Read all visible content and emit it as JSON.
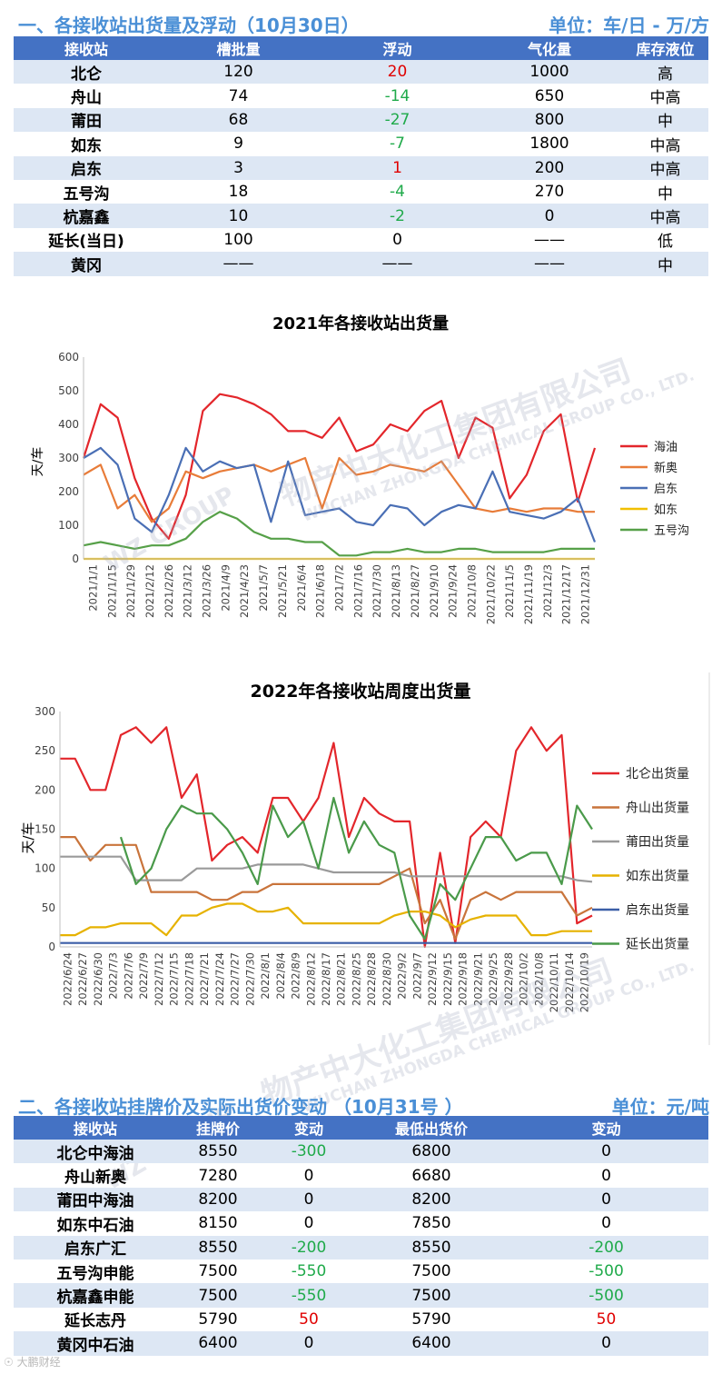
{
  "section1": {
    "title": "一、各接收站出货量及浮动（10月30日）",
    "unit": "单位：车/日 - 万/方",
    "headers": [
      "接收站",
      "槽批量",
      "浮动",
      "气化量",
      "库存液位"
    ],
    "rows": [
      {
        "name": "北仑",
        "batch": "120",
        "float": "20",
        "float_sign": "pos",
        "gas": "1000",
        "level": "高"
      },
      {
        "name": "舟山",
        "batch": "74",
        "float": "-14",
        "float_sign": "neg",
        "gas": "650",
        "level": "中高"
      },
      {
        "name": "莆田",
        "batch": "68",
        "float": "-27",
        "float_sign": "neg",
        "gas": "800",
        "level": "中"
      },
      {
        "name": "如东",
        "batch": "9",
        "float": "-7",
        "float_sign": "neg",
        "gas": "1800",
        "level": "中高"
      },
      {
        "name": "启东",
        "batch": "3",
        "float": "1",
        "float_sign": "pos",
        "gas": "200",
        "level": "中高"
      },
      {
        "name": "五号沟",
        "batch": "18",
        "float": "-4",
        "float_sign": "neg",
        "gas": "270",
        "level": "中"
      },
      {
        "name": "杭嘉鑫",
        "batch": "10",
        "float": "-2",
        "float_sign": "neg",
        "gas": "0",
        "level": "中高"
      },
      {
        "name": "延长(当日)",
        "batch": "100",
        "float": "0",
        "float_sign": "zero",
        "gas": "——",
        "level": "低"
      },
      {
        "name": "黄冈",
        "batch": "——",
        "float": "——",
        "float_sign": "zero",
        "gas": "——",
        "level": "中"
      }
    ]
  },
  "chart_data": [
    {
      "type": "line",
      "title": "2021年各接收站出货量",
      "ylabel": "天/车",
      "ylim": [
        0,
        600
      ],
      "yticks": [
        0,
        100,
        200,
        300,
        400,
        500,
        600
      ],
      "x_ticks": [
        "2021/1/1",
        "2021/1/15",
        "2021/1/29",
        "2021/2/12",
        "2021/2/26",
        "2021/3/12",
        "2021/3/26",
        "2021/4/9",
        "2021/4/23",
        "2021/5/7",
        "2021/5/21",
        "2021/6/4",
        "2021/6/18",
        "2021/7/2",
        "2021/7/16",
        "2021/7/30",
        "2021/8/13",
        "2021/8/27",
        "2021/9/10",
        "2021/9/24",
        "2021/10/8",
        "2021/10/22",
        "2021/11/5",
        "2021/11/19",
        "2021/12/3",
        "2021/12/17",
        "2021/12/31"
      ],
      "legend_position": "right",
      "series": [
        {
          "name": "海油",
          "color": "#e3262b",
          "values": [
            300,
            460,
            420,
            240,
            120,
            60,
            190,
            440,
            490,
            480,
            460,
            430,
            380,
            380,
            360,
            420,
            320,
            340,
            400,
            380,
            440,
            470,
            300,
            420,
            390,
            180,
            250,
            380,
            430,
            170,
            330
          ]
        },
        {
          "name": "新奥",
          "color": "#e87c39",
          "values": [
            250,
            280,
            150,
            190,
            110,
            150,
            260,
            240,
            260,
            270,
            280,
            260,
            280,
            300,
            150,
            300,
            250,
            260,
            280,
            270,
            260,
            290,
            220,
            150,
            140,
            150,
            140,
            150,
            150,
            140,
            140
          ]
        },
        {
          "name": "启东",
          "color": "#4a6fb5",
          "values": [
            300,
            330,
            280,
            120,
            80,
            190,
            330,
            260,
            290,
            270,
            280,
            110,
            290,
            130,
            140,
            150,
            110,
            100,
            160,
            150,
            100,
            140,
            160,
            150,
            260,
            140,
            130,
            120,
            140,
            180,
            50
          ]
        },
        {
          "name": "如东",
          "color": "#f1bf00",
          "values": [
            0,
            0,
            0,
            0,
            0,
            0,
            0,
            0,
            0,
            0,
            0,
            0,
            0,
            0,
            0,
            0,
            0,
            0,
            0,
            0,
            0,
            0,
            0,
            0,
            0,
            0,
            0,
            0,
            0,
            0,
            0
          ]
        },
        {
          "name": "五号沟",
          "color": "#56a048",
          "values": [
            40,
            50,
            40,
            30,
            40,
            40,
            60,
            110,
            140,
            120,
            80,
            60,
            60,
            50,
            50,
            10,
            10,
            20,
            20,
            30,
            20,
            20,
            30,
            30,
            20,
            20,
            20,
            20,
            30,
            30,
            30
          ]
        }
      ]
    },
    {
      "type": "line",
      "title": "2022年各接收站周度出货量",
      "ylabel": "天/车",
      "ylim": [
        0,
        300
      ],
      "yticks": [
        0,
        50,
        100,
        150,
        200,
        250,
        300
      ],
      "x_ticks": [
        "2022/6/24",
        "2022/6/27",
        "2022/6/30",
        "2022/7/3",
        "2022/7/6",
        "2022/7/9",
        "2022/7/12",
        "2022/7/15",
        "2022/7/18",
        "2022/7/21",
        "2022/7/24",
        "2022/7/27",
        "2022/7/30",
        "2022/8/1",
        "2022/8/4",
        "2022/8/9",
        "2022/8/12",
        "2022/8/17",
        "2022/8/21",
        "2022/8/25",
        "2022/8/28",
        "2022/8/30",
        "2022/9/2",
        "2022/9/7",
        "2022/9/12",
        "2022/9/15",
        "2022/9/18",
        "2022/9/21",
        "2022/9/25",
        "2022/9/28",
        "2022/10/2",
        "2022/10/8",
        "2022/10/11",
        "2022/10/14",
        "2022/10/19"
      ],
      "legend_position": "right",
      "series": [
        {
          "name": "北仑出货量",
          "color": "#e3262b",
          "values": [
            240,
            240,
            200,
            200,
            270,
            280,
            260,
            280,
            190,
            220,
            110,
            130,
            140,
            120,
            190,
            190,
            160,
            190,
            260,
            140,
            190,
            170,
            160,
            160,
            0,
            120,
            5,
            140,
            160,
            140,
            250,
            280,
            250,
            270,
            30,
            40
          ]
        },
        {
          "name": "舟山出货量",
          "color": "#c9743b",
          "values": [
            140,
            140,
            110,
            130,
            130,
            130,
            70,
            70,
            70,
            70,
            60,
            60,
            70,
            70,
            80,
            80,
            80,
            80,
            80,
            80,
            80,
            80,
            90,
            100,
            30,
            60,
            10,
            60,
            70,
            60,
            70,
            70,
            70,
            70,
            40,
            50
          ]
        },
        {
          "name": "莆田出货量",
          "color": "#9a9a9a",
          "values": [
            115,
            115,
            115,
            115,
            115,
            85,
            85,
            85,
            85,
            100,
            100,
            100,
            100,
            105,
            105,
            105,
            105,
            100,
            95,
            95,
            95,
            95,
            95,
            90,
            90,
            90,
            90,
            90,
            90,
            90,
            90,
            90,
            90,
            90,
            85,
            83
          ]
        },
        {
          "name": "如东出货量",
          "color": "#e6b200",
          "values": [
            15,
            15,
            25,
            25,
            30,
            30,
            30,
            15,
            40,
            40,
            50,
            55,
            55,
            45,
            45,
            50,
            30,
            30,
            30,
            30,
            30,
            30,
            40,
            45,
            45,
            40,
            25,
            35,
            40,
            40,
            40,
            15,
            15,
            20,
            20,
            20
          ]
        },
        {
          "name": "启东出货量",
          "color": "#3b5ea7",
          "values": [
            5,
            5,
            5,
            5,
            5,
            5,
            5,
            5,
            5,
            5,
            5,
            5,
            5,
            5,
            5,
            5,
            5,
            5,
            5,
            5,
            5,
            5,
            5,
            5,
            5,
            5,
            5,
            5,
            5,
            5,
            5,
            5,
            5,
            5,
            5,
            5
          ]
        },
        {
          "name": "延长出货量",
          "color": "#4a9a4a",
          "values": [
            null,
            null,
            null,
            null,
            140,
            80,
            100,
            150,
            180,
            170,
            170,
            150,
            120,
            80,
            180,
            140,
            160,
            100,
            190,
            120,
            160,
            130,
            120,
            40,
            10,
            80,
            60,
            100,
            140,
            140,
            110,
            120,
            120,
            80,
            180,
            150
          ]
        }
      ]
    }
  ],
  "watermark": {
    "cn": "物产中大化工集团有限公司",
    "en": "WUCHAN ZHONGDA CHEMICAL GROUP CO., LTD.",
    "short": "WZ GROUP"
  },
  "section2": {
    "title": "二、各接收站挂牌价及实际出货价变动 （10月31号 ）",
    "unit": "单位：元/吨",
    "headers": [
      "接收站",
      "挂牌价",
      "变动",
      "最低出货价",
      "变动"
    ],
    "rows": [
      {
        "name": "北仑中海油",
        "list": "8550",
        "chg1": "-300",
        "s1": "neg",
        "low": "6800",
        "chg2": "0",
        "s2": "zero"
      },
      {
        "name": "舟山新奥",
        "list": "7280",
        "chg1": "0",
        "s1": "zero",
        "low": "6680",
        "chg2": "0",
        "s2": "zero"
      },
      {
        "name": "莆田中海油",
        "list": "8200",
        "chg1": "0",
        "s1": "zero",
        "low": "8200",
        "chg2": "0",
        "s2": "zero"
      },
      {
        "name": "如东中石油",
        "list": "8150",
        "chg1": "0",
        "s1": "zero",
        "low": "7850",
        "chg2": "0",
        "s2": "zero"
      },
      {
        "name": "启东广汇",
        "list": "8550",
        "chg1": "-200",
        "s1": "neg",
        "low": "8550",
        "chg2": "-200",
        "s2": "neg"
      },
      {
        "name": "五号沟申能",
        "list": "7500",
        "chg1": "-550",
        "s1": "neg",
        "low": "7500",
        "chg2": "-500",
        "s2": "neg"
      },
      {
        "name": "杭嘉鑫申能",
        "list": "7500",
        "chg1": "-550",
        "s1": "neg",
        "low": "7500",
        "chg2": "-500",
        "s2": "neg"
      },
      {
        "name": "延长志丹",
        "list": "5790",
        "chg1": "50",
        "s1": "pos",
        "low": "5790",
        "chg2": "50",
        "s2": "pos"
      },
      {
        "name": "黄冈中石油",
        "list": "6400",
        "chg1": "0",
        "s1": "zero",
        "low": "6400",
        "chg2": "0",
        "s2": "zero"
      }
    ]
  },
  "footer": {
    "logo_text": "大鹏财经"
  }
}
